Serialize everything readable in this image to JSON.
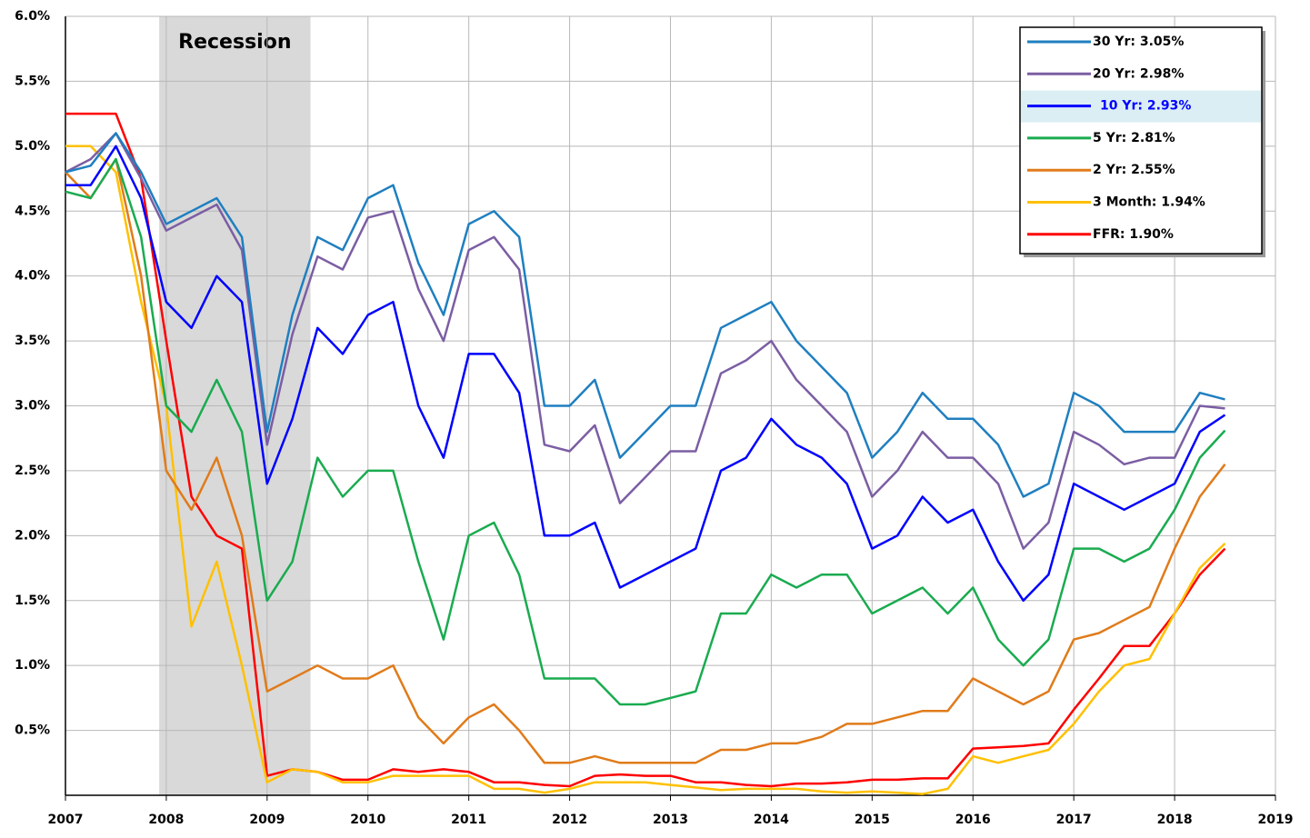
{
  "chart_data": {
    "type": "line",
    "x": [
      2007.0,
      2007.25,
      2007.5,
      2007.75,
      2008.0,
      2008.25,
      2008.5,
      2008.75,
      2009.0,
      2009.25,
      2009.5,
      2009.75,
      2010.0,
      2010.25,
      2010.5,
      2010.75,
      2011.0,
      2011.25,
      2011.5,
      2011.75,
      2012.0,
      2012.25,
      2012.5,
      2012.75,
      2013.0,
      2013.25,
      2013.5,
      2013.75,
      2014.0,
      2014.25,
      2014.5,
      2014.75,
      2015.0,
      2015.25,
      2015.5,
      2015.75,
      2016.0,
      2016.25,
      2016.5,
      2016.75,
      2017.0,
      2017.25,
      2017.5,
      2017.75,
      2018.0,
      2018.25,
      2018.5
    ],
    "series": [
      {
        "name": "30 Yr: 3.05%",
        "color": "#1f7fc0",
        "values": [
          4.8,
          4.85,
          5.1,
          4.8,
          4.4,
          4.5,
          4.6,
          4.3,
          2.8,
          3.7,
          4.3,
          4.2,
          4.6,
          4.7,
          4.1,
          3.7,
          4.4,
          4.5,
          4.3,
          3.0,
          3.0,
          3.2,
          2.6,
          2.8,
          3.0,
          3.0,
          3.6,
          3.7,
          3.8,
          3.5,
          3.3,
          3.1,
          2.6,
          2.8,
          3.1,
          2.9,
          2.9,
          2.7,
          2.3,
          2.4,
          3.1,
          3.0,
          2.8,
          2.8,
          2.8,
          3.1,
          3.05
        ]
      },
      {
        "name": "20 Yr: 2.98%",
        "color": "#7b5ea3",
        "values": [
          4.8,
          4.9,
          5.1,
          4.75,
          4.35,
          4.45,
          4.55,
          4.2,
          2.7,
          3.55,
          4.15,
          4.05,
          4.45,
          4.5,
          3.9,
          3.5,
          4.2,
          4.3,
          4.05,
          2.7,
          2.65,
          2.85,
          2.25,
          2.45,
          2.65,
          2.65,
          3.25,
          3.35,
          3.5,
          3.2,
          3.0,
          2.8,
          2.3,
          2.5,
          2.8,
          2.6,
          2.6,
          2.4,
          1.9,
          2.1,
          2.8,
          2.7,
          2.55,
          2.6,
          2.6,
          3.0,
          2.98
        ]
      },
      {
        "name": "10 Yr: 2.93%",
        "color": "#0000ff",
        "highlight": true,
        "values": [
          4.7,
          4.7,
          5.0,
          4.6,
          3.8,
          3.6,
          4.0,
          3.8,
          2.4,
          2.9,
          3.6,
          3.4,
          3.7,
          3.8,
          3.0,
          2.6,
          3.4,
          3.4,
          3.1,
          2.0,
          2.0,
          2.1,
          1.6,
          1.7,
          1.8,
          1.9,
          2.5,
          2.6,
          2.9,
          2.7,
          2.6,
          2.4,
          1.9,
          2.0,
          2.3,
          2.1,
          2.2,
          1.8,
          1.5,
          1.7,
          2.4,
          2.3,
          2.2,
          2.3,
          2.4,
          2.8,
          2.93
        ]
      },
      {
        "name": "5 Yr: 2.81%",
        "color": "#1aab50",
        "values": [
          4.65,
          4.6,
          4.9,
          4.3,
          3.0,
          2.8,
          3.2,
          2.8,
          1.5,
          1.8,
          2.6,
          2.3,
          2.5,
          2.5,
          1.8,
          1.2,
          2.0,
          2.1,
          1.7,
          0.9,
          0.9,
          0.9,
          0.7,
          0.7,
          0.75,
          0.8,
          1.4,
          1.4,
          1.7,
          1.6,
          1.7,
          1.7,
          1.4,
          1.5,
          1.6,
          1.4,
          1.6,
          1.2,
          1.0,
          1.2,
          1.9,
          1.9,
          1.8,
          1.9,
          2.2,
          2.6,
          2.81
        ]
      },
      {
        "name": "2 Yr: 2.55%",
        "color": "#e07b1a",
        "values": [
          4.8,
          4.6,
          4.9,
          4.0,
          2.5,
          2.2,
          2.6,
          2.0,
          0.8,
          0.9,
          1.0,
          0.9,
          0.9,
          1.0,
          0.6,
          0.4,
          0.6,
          0.7,
          0.5,
          0.25,
          0.25,
          0.3,
          0.25,
          0.25,
          0.25,
          0.25,
          0.35,
          0.35,
          0.4,
          0.4,
          0.45,
          0.55,
          0.55,
          0.6,
          0.65,
          0.65,
          0.9,
          0.8,
          0.7,
          0.8,
          1.2,
          1.25,
          1.35,
          1.45,
          1.9,
          2.3,
          2.55
        ]
      },
      {
        "name": "3 Month: 1.94%",
        "color": "#ffc000",
        "values": [
          5.0,
          5.0,
          4.8,
          3.8,
          3.0,
          1.3,
          1.8,
          1.0,
          0.1,
          0.2,
          0.18,
          0.1,
          0.1,
          0.15,
          0.15,
          0.15,
          0.15,
          0.05,
          0.05,
          0.02,
          0.05,
          0.1,
          0.1,
          0.1,
          0.08,
          0.06,
          0.04,
          0.05,
          0.05,
          0.05,
          0.03,
          0.02,
          0.03,
          0.02,
          0.01,
          0.05,
          0.3,
          0.25,
          0.3,
          0.35,
          0.55,
          0.8,
          1.0,
          1.05,
          1.4,
          1.75,
          1.94
        ]
      },
      {
        "name": "FFR: 1.90%",
        "color": "#ff0000",
        "values": [
          5.25,
          5.25,
          5.25,
          4.75,
          3.5,
          2.3,
          2.0,
          1.9,
          0.15,
          0.2,
          0.18,
          0.12,
          0.12,
          0.2,
          0.18,
          0.2,
          0.18,
          0.1,
          0.1,
          0.08,
          0.07,
          0.15,
          0.16,
          0.15,
          0.15,
          0.1,
          0.1,
          0.08,
          0.07,
          0.09,
          0.09,
          0.1,
          0.12,
          0.12,
          0.13,
          0.13,
          0.36,
          0.37,
          0.38,
          0.4,
          0.66,
          0.9,
          1.15,
          1.15,
          1.4,
          1.7,
          1.9
        ]
      }
    ],
    "recession": {
      "label": "Recession",
      "x": [
        2007.93,
        2009.43
      ]
    },
    "xlim": [
      2007,
      2019
    ],
    "xticks": [
      2007,
      2008,
      2009,
      2010,
      2011,
      2012,
      2013,
      2014,
      2015,
      2016,
      2017,
      2018,
      2019
    ],
    "ylim": [
      0,
      6
    ],
    "yticks": [
      {
        "value": 0.5,
        "label": "0.5%"
      },
      {
        "value": 1.0,
        "label": "1.0%"
      },
      {
        "value": 1.5,
        "label": "1.5%"
      },
      {
        "value": 2.0,
        "label": "2.0%"
      },
      {
        "value": 2.5,
        "label": "2.5%"
      },
      {
        "value": 3.0,
        "label": "3.0%"
      },
      {
        "value": 3.5,
        "label": "3.5%"
      },
      {
        "value": 4.0,
        "label": "4.0%"
      },
      {
        "value": 4.5,
        "label": "4.5%"
      },
      {
        "value": 5.0,
        "label": "5.0%"
      },
      {
        "value": 5.5,
        "label": "5.5%"
      },
      {
        "value": 6.0,
        "label": "6.0%"
      }
    ],
    "grid": true,
    "legend": "top-right"
  }
}
